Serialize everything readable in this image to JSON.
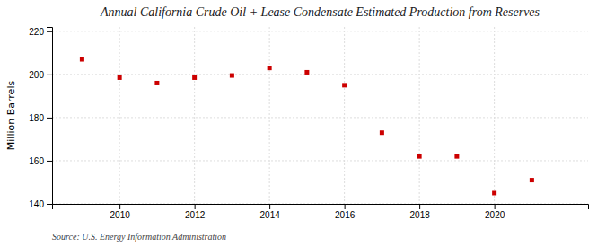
{
  "chart_data": {
    "type": "scatter",
    "title": "Annual California Crude Oil + Lease Condensate Estimated Production from Reserves",
    "ylabel": "Million Barrels",
    "annotations": [
      "Source: U.S. Energy Information Administration"
    ],
    "x": [
      2009,
      2010,
      2011,
      2012,
      2013,
      2014,
      2015,
      2016,
      2017,
      2018,
      2019,
      2020,
      2021
    ],
    "values": [
      207.0,
      198.5,
      196.0,
      198.5,
      199.5,
      203.0,
      201.0,
      195.0,
      173.0,
      162.0,
      162.0,
      145.0,
      151.0
    ],
    "color": "#cc0000",
    "marker": "square",
    "xlim": [
      2008.2,
      2022.5
    ],
    "xticks": [
      2010,
      2012,
      2014,
      2016,
      2018,
      2020
    ],
    "ylim": [
      140,
      222
    ],
    "yticks": [
      140,
      160,
      180,
      200,
      220
    ],
    "grid": true
  }
}
